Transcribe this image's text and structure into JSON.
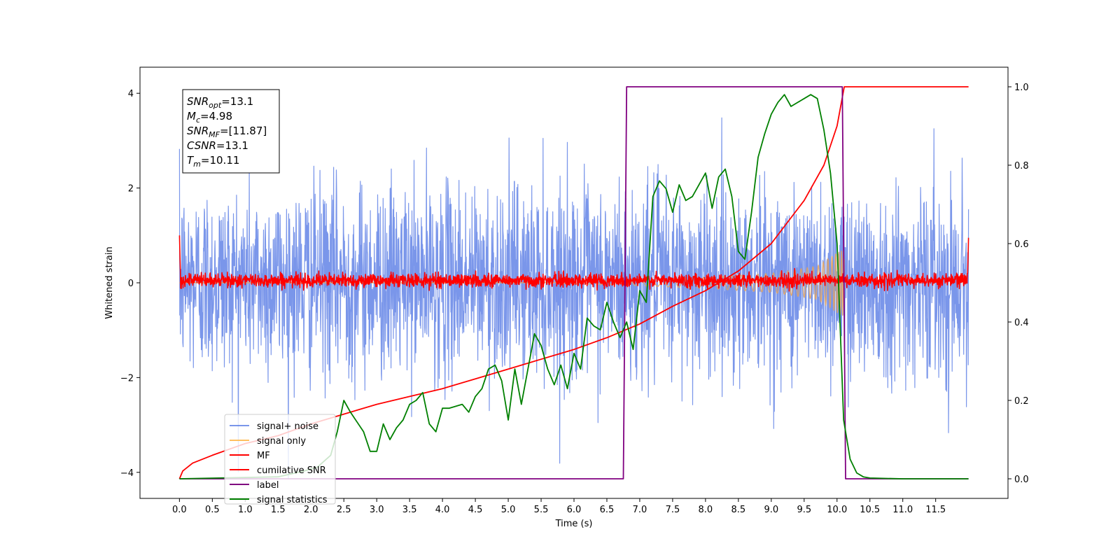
{
  "chart_data": {
    "type": "line",
    "xlabel": "Time (s)",
    "ylabel": "Whitened strain",
    "xlim": [
      -0.6,
      12.6
    ],
    "ylim": [
      -4.55,
      4.55
    ],
    "y2lim": [
      -0.05,
      1.05
    ],
    "x_ticks": [
      0.0,
      0.5,
      1.0,
      1.5,
      2.0,
      2.5,
      3.0,
      3.5,
      4.0,
      4.5,
      5.0,
      5.5,
      6.0,
      6.5,
      7.0,
      7.5,
      8.0,
      8.5,
      9.0,
      9.5,
      10.0,
      10.5,
      11.0,
      11.5
    ],
    "x_tick_labels": [
      "0.0",
      "0.5",
      "1.0",
      "1.5",
      "2.0",
      "2.5",
      "3.0",
      "3.5",
      "4.0",
      "4.5",
      "5.0",
      "5.5",
      "6.0",
      "6.5",
      "7.0",
      "7.5",
      "8.0",
      "8.5",
      "9.0",
      "9.5",
      "10.0",
      "10.5",
      "11.0",
      "11.5"
    ],
    "y_ticks": [
      -4,
      -2,
      0,
      2,
      4
    ],
    "y_tick_labels": [
      "−4",
      "−2",
      "0",
      "2",
      "4"
    ],
    "y2_ticks": [
      0.0,
      0.2,
      0.4,
      0.6,
      0.8,
      1.0
    ],
    "y2_tick_labels": [
      "0.0",
      "0.2",
      "0.4",
      "0.6",
      "0.8",
      "1.0"
    ],
    "grid": false,
    "legend_position": "lower-left",
    "annotation": {
      "lines": [
        {
          "sym": "SNR",
          "sub": "opt",
          "val": "=13.1"
        },
        {
          "sym": "M",
          "sub": "c",
          "val": "=4.98"
        },
        {
          "sym": "SNR",
          "sub": "MF",
          "val": "=[11.87]"
        },
        {
          "sym": "CSNR",
          "sub": "",
          "val": "=13.1"
        },
        {
          "sym": "T",
          "sub": "m",
          "val": "=10.11"
        }
      ]
    },
    "series": [
      {
        "name": "signal+ noise",
        "color": "#4169e1",
        "opacity": 0.7,
        "axis": "left",
        "kind": "noise",
        "x_range": [
          0.0,
          12.0
        ],
        "std": 1.0,
        "mean": 0.05
      },
      {
        "name": "signal only",
        "color": "#ffa500",
        "opacity": 0.5,
        "axis": "left",
        "kind": "chirp",
        "x_range": [
          0.0,
          10.11
        ],
        "amplitude_at": [
          [
            6.8,
            0.05
          ],
          [
            8.0,
            0.12
          ],
          [
            9.0,
            0.2
          ],
          [
            9.7,
            0.35
          ],
          [
            10.05,
            0.68
          ],
          [
            10.11,
            0.7
          ]
        ]
      },
      {
        "name": "MF",
        "color": "#ff0000",
        "opacity": 1.0,
        "axis": "left",
        "kind": "noise",
        "x_range": [
          0.0,
          12.0
        ],
        "std": 0.07,
        "mean": 0.05,
        "edge_peaks": [
          1.0,
          0.95
        ]
      },
      {
        "name": "cumilative SNR",
        "color": "#ff0000",
        "opacity": 1.0,
        "axis": "right",
        "x": [
          0.0,
          0.05,
          0.2,
          0.5,
          1.0,
          1.5,
          2.0,
          2.5,
          3.0,
          3.5,
          4.0,
          4.5,
          5.0,
          5.5,
          6.0,
          6.5,
          7.0,
          7.5,
          8.0,
          8.5,
          9.0,
          9.5,
          9.8,
          10.0,
          10.11,
          12.0
        ],
        "y": [
          0.0,
          0.02,
          0.04,
          0.06,
          0.09,
          0.11,
          0.14,
          0.165,
          0.19,
          0.21,
          0.23,
          0.255,
          0.28,
          0.305,
          0.33,
          0.36,
          0.395,
          0.44,
          0.48,
          0.53,
          0.6,
          0.71,
          0.8,
          0.9,
          1.0,
          1.0
        ]
      },
      {
        "name": "label",
        "color": "#800080",
        "opacity": 1.0,
        "axis": "right",
        "x": [
          0.0,
          6.75,
          6.8,
          10.08,
          10.13,
          12.0
        ],
        "y": [
          0.0,
          0.0,
          1.0,
          1.0,
          0.0,
          0.0
        ]
      },
      {
        "name": "signal statistics",
        "color": "#008000",
        "opacity": 1.0,
        "axis": "right",
        "x": [
          0.0,
          1.5,
          1.9,
          2.1,
          2.3,
          2.4,
          2.5,
          2.6,
          2.8,
          2.9,
          3.0,
          3.1,
          3.2,
          3.3,
          3.4,
          3.5,
          3.6,
          3.7,
          3.8,
          3.9,
          4.0,
          4.1,
          4.3,
          4.4,
          4.5,
          4.6,
          4.7,
          4.8,
          4.9,
          5.0,
          5.1,
          5.2,
          5.3,
          5.4,
          5.5,
          5.6,
          5.7,
          5.8,
          5.9,
          6.0,
          6.1,
          6.2,
          6.3,
          6.4,
          6.5,
          6.6,
          6.7,
          6.8,
          6.9,
          7.0,
          7.1,
          7.2,
          7.3,
          7.4,
          7.5,
          7.6,
          7.7,
          7.8,
          8.0,
          8.1,
          8.2,
          8.3,
          8.4,
          8.5,
          8.6,
          8.7,
          8.8,
          8.9,
          9.0,
          9.1,
          9.2,
          9.3,
          9.4,
          9.5,
          9.6,
          9.7,
          9.8,
          9.9,
          10.0,
          10.1,
          10.2,
          10.3,
          10.4,
          10.5,
          10.7,
          11.0,
          12.0
        ],
        "y": [
          0.0,
          0.005,
          0.02,
          0.03,
          0.06,
          0.12,
          0.2,
          0.17,
          0.12,
          0.07,
          0.07,
          0.14,
          0.1,
          0.13,
          0.15,
          0.19,
          0.2,
          0.22,
          0.14,
          0.12,
          0.18,
          0.18,
          0.19,
          0.17,
          0.21,
          0.23,
          0.28,
          0.29,
          0.25,
          0.15,
          0.28,
          0.19,
          0.28,
          0.37,
          0.34,
          0.28,
          0.24,
          0.29,
          0.23,
          0.32,
          0.28,
          0.41,
          0.39,
          0.38,
          0.45,
          0.4,
          0.36,
          0.4,
          0.33,
          0.48,
          0.45,
          0.72,
          0.76,
          0.74,
          0.68,
          0.75,
          0.71,
          0.72,
          0.78,
          0.69,
          0.77,
          0.79,
          0.72,
          0.58,
          0.56,
          0.68,
          0.82,
          0.88,
          0.93,
          0.96,
          0.98,
          0.95,
          0.96,
          0.97,
          0.98,
          0.97,
          0.89,
          0.78,
          0.6,
          0.15,
          0.05,
          0.015,
          0.005,
          0.002,
          0.001,
          0.0,
          0.0
        ]
      }
    ]
  }
}
